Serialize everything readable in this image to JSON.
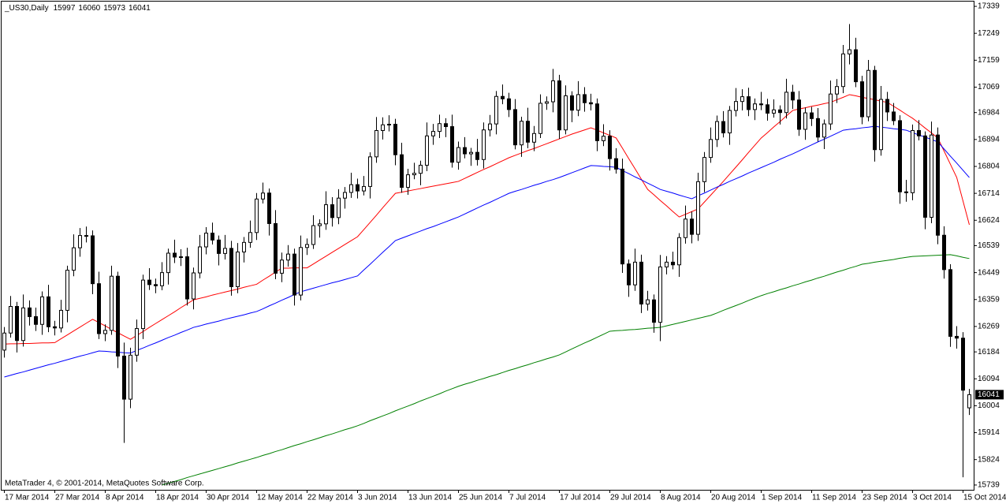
{
  "chart_data": {
    "type": "candlestick",
    "title": "_US30,Daily",
    "copyright": "MetaTrader 4, © 2001-2014, MetaQuotes Software Corp.",
    "categories": [
      "17 Mar 2014",
      null,
      null,
      null,
      null,
      null,
      null,
      null,
      "27 Mar 2014",
      null,
      null,
      null,
      null,
      null,
      null,
      null,
      "8 Apr 2014",
      null,
      null,
      null,
      null,
      null,
      null,
      null,
      "18 Apr 2014",
      null,
      null,
      null,
      null,
      null,
      null,
      null,
      "30 Apr 2014",
      null,
      null,
      null,
      null,
      null,
      null,
      null,
      "12 May 2014",
      null,
      null,
      null,
      null,
      null,
      null,
      null,
      "22 May 2014",
      null,
      null,
      null,
      null,
      null,
      null,
      null,
      "3 Jun 2014",
      null,
      null,
      null,
      null,
      null,
      null,
      null,
      "13 Jun 2014",
      null,
      null,
      null,
      null,
      null,
      null,
      null,
      "25 Jun 2014",
      null,
      null,
      null,
      null,
      null,
      null,
      null,
      "7 Jul 2014",
      null,
      null,
      null,
      null,
      null,
      null,
      null,
      "17 Jul 2014",
      null,
      null,
      null,
      null,
      null,
      null,
      null,
      "29 Jul 2014",
      null,
      null,
      null,
      null,
      null,
      null,
      null,
      "8 Aug 2014",
      null,
      null,
      null,
      null,
      null,
      null,
      null,
      "20 Aug 2014",
      null,
      null,
      null,
      null,
      null,
      null,
      null,
      "1 Sep 2014",
      null,
      null,
      null,
      null,
      null,
      null,
      null,
      "11 Sep 2014",
      null,
      null,
      null,
      null,
      null,
      null,
      null,
      "23 Sep 2014",
      null,
      null,
      null,
      null,
      null,
      null,
      null,
      "3 Oct 2014",
      null,
      null,
      null,
      null,
      null,
      null,
      null,
      "15 Oct 2014",
      null
    ],
    "open": [
      16190,
      16247,
      16336,
      16222,
      16331,
      16302,
      16276,
      16368,
      16268,
      16264,
      16323,
      16457,
      16532,
      16573,
      16572,
      16412,
      16245,
      16256,
      16437,
      16170,
      16026,
      16173,
      16262,
      16424,
      16409,
      16405,
      16449,
      16514,
      16501,
      16502,
      16361,
      16448,
      16535,
      16581,
      16558,
      16513,
      16530,
      16402,
      16518,
      16550,
      16583,
      16695,
      16715,
      16613,
      16447,
      16491,
      16511,
      16374,
      16533,
      16543,
      16606,
      16612,
      16676,
      16633,
      16698,
      16717,
      16743,
      16722,
      16737,
      16836,
      16924,
      16943,
      16945,
      16843,
      16734,
      16776,
      16781,
      16808,
      16906,
      16921,
      16947,
      16937,
      16818,
      16867,
      16846,
      16851,
      16827,
      16926,
      16946,
      17038,
      17030,
      16994,
      16876,
      16955,
      16885,
      16914,
      17015,
      17020,
      17090,
      16926,
      17040,
      16992,
      17044,
      17017,
      17013,
      16890,
      16905,
      16830,
      16795,
      16478,
      16408,
      16484,
      16344,
      16358,
      16283,
      16468,
      16484,
      16475,
      16566,
      16628,
      16577,
      16753,
      16834,
      16894,
      16954,
      16916,
      16991,
      17021,
      17037,
      16994,
      17013,
      17010,
      16982,
      16993,
      16984,
      17052,
      17026,
      16928,
      16983,
      16964,
      16902,
      16946,
      17046,
      17071,
      17180,
      17194,
      17087,
      16970,
      17125,
      16860,
      17028,
      16986,
      16957,
      16719,
      16716,
      16924,
      16906,
      16634,
      16909,
      16574,
      16459,
      16236,
      16230,
      15997
    ],
    "high": [
      16267,
      16371,
      16351,
      16376,
      16356,
      16332,
      16386,
      16408,
      16288,
      16358,
      16472,
      16577,
      16598,
      16603,
      16590,
      16452,
      16276,
      16472,
      16452,
      16215,
      16198,
      16292,
      16442,
      16464,
      16429,
      16484,
      16529,
      16559,
      16527,
      16532,
      16466,
      16575,
      16601,
      16616,
      16573,
      16575,
      16555,
      16548,
      16568,
      16623,
      16715,
      16750,
      16730,
      16658,
      16516,
      16541,
      16529,
      16573,
      16563,
      16641,
      16627,
      16721,
      16701,
      16728,
      16735,
      16783,
      16763,
      16772,
      16851,
      16969,
      16968,
      16975,
      16963,
      16883,
      16796,
      16816,
      16823,
      16951,
      16946,
      16977,
      16965,
      16977,
      16887,
      16902,
      16866,
      16896,
      16951,
      16976,
      17056,
      17078,
      17050,
      17029,
      16970,
      17000,
      16939,
      17045,
      17038,
      17130,
      17110,
      17075,
      17055,
      17089,
      17069,
      17047,
      17031,
      16945,
      16925,
      16865,
      16830,
      16493,
      16529,
      16509,
      16388,
      16376,
      16508,
      16504,
      16519,
      16581,
      16673,
      16653,
      16783,
      16852,
      16934,
      16974,
      16989,
      17006,
      17066,
      17062,
      17067,
      17031,
      17053,
      17030,
      17028,
      17008,
      17097,
      17077,
      17056,
      17001,
      17003,
      16999,
      16961,
      17091,
      17096,
      17210,
      17280,
      17234,
      17107,
      17160,
      17140,
      17073,
      17053,
      17016,
      16975,
      16759,
      16944,
      16959,
      16921,
      16954,
      16934,
      16604,
      16477,
      16270,
      16250,
      16060
    ],
    "low": [
      16165,
      16232,
      16182,
      16202,
      16272,
      16254,
      16241,
      16250,
      16239,
      16249,
      16283,
      16437,
      16502,
      16550,
      16377,
      16227,
      16220,
      16241,
      16130,
      15880,
      15996,
      16151,
      16227,
      16391,
      16380,
      16390,
      16409,
      16481,
      16471,
      16339,
      16326,
      16430,
      16510,
      16543,
      16473,
      16493,
      16372,
      16380,
      16483,
      16532,
      16558,
      16680,
      16573,
      16427,
      16417,
      16469,
      16339,
      16356,
      16508,
      16528,
      16566,
      16592,
      16603,
      16611,
      16663,
      16699,
      16697,
      16707,
      16697,
      16816,
      16894,
      16921,
      16808,
      16716,
      16709,
      16761,
      16741,
      16788,
      16876,
      16899,
      16902,
      16800,
      16793,
      16831,
      16806,
      16807,
      16797,
      16904,
      16911,
      17012,
      16969,
      16861,
      16836,
      16865,
      16855,
      16899,
      16993,
      16985,
      16896,
      16911,
      16952,
      16972,
      16987,
      16991,
      16855,
      16872,
      16790,
      16780,
      16448,
      16368,
      16388,
      16314,
      16322,
      16248,
      16220,
      16443,
      16460,
      16435,
      16546,
      16547,
      16555,
      16718,
      16816,
      16869,
      16901,
      16876,
      16971,
      16991,
      16972,
      16959,
      16992,
      16957,
      16967,
      16944,
      16964,
      16996,
      16906,
      16893,
      16939,
      16887,
      16862,
      16926,
      17016,
      17049,
      17145,
      17069,
      16945,
      16955,
      16820,
      16840,
      16956,
      16942,
      16679,
      16686,
      16691,
      16891,
      16594,
      16614,
      16544,
      16429,
      16201,
      16195,
      15765,
      15973
    ],
    "close": [
      16247,
      16336,
      16222,
      16331,
      16302,
      16276,
      16368,
      16268,
      16264,
      16323,
      16457,
      16532,
      16573,
      16572,
      16412,
      16245,
      16256,
      16437,
      16170,
      16026,
      16173,
      16262,
      16424,
      16409,
      16405,
      16449,
      16514,
      16501,
      16502,
      16361,
      16448,
      16535,
      16581,
      16558,
      16513,
      16530,
      16402,
      16518,
      16550,
      16583,
      16695,
      16715,
      16613,
      16447,
      16491,
      16511,
      16374,
      16533,
      16543,
      16606,
      16612,
      16676,
      16633,
      16698,
      16717,
      16743,
      16722,
      16737,
      16836,
      16924,
      16943,
      16945,
      16843,
      16734,
      16776,
      16781,
      16808,
      16906,
      16921,
      16947,
      16937,
      16818,
      16867,
      16846,
      16851,
      16827,
      16926,
      16946,
      17038,
      17030,
      16994,
      16876,
      16955,
      16885,
      16914,
      17015,
      17020,
      17090,
      16926,
      17040,
      16992,
      17044,
      17017,
      17013,
      16890,
      16905,
      16830,
      16795,
      16478,
      16408,
      16484,
      16344,
      16358,
      16283,
      16468,
      16484,
      16475,
      16566,
      16628,
      16577,
      16753,
      16834,
      16894,
      16954,
      16916,
      16991,
      17021,
      17037,
      16994,
      17013,
      17010,
      16982,
      16993,
      16984,
      17052,
      17026,
      16928,
      16983,
      16964,
      16902,
      16946,
      17046,
      17071,
      17180,
      17194,
      17087,
      16970,
      17125,
      16860,
      17028,
      16986,
      16957,
      16719,
      16716,
      16924,
      16906,
      16634,
      16909,
      16574,
      16459,
      16236,
      16230,
      16056,
      16041
    ],
    "up_color": "#ffffff",
    "down_color": "#000000",
    "outline_color": "#000000",
    "series": [
      {
        "color": "#ff0000",
        "values": [
          16210,
          16211,
          16211,
          16212,
          16212,
          16213,
          16214,
          16214,
          16215,
          16228,
          16241,
          16254,
          16267,
          16280,
          16293,
          16282,
          16271,
          16259,
          16248,
          16237,
          16226,
          16239,
          16252,
          16266,
          16279,
          16292,
          16305,
          16318,
          16332,
          16345,
          16358,
          16363,
          16368,
          16374,
          16379,
          16384,
          16389,
          16394,
          16400,
          16405,
          16410,
          16424,
          16437,
          16451,
          16464,
          16464,
          16465,
          16465,
          16465,
          16478,
          16491,
          16504,
          16517,
          16530,
          16543,
          16556,
          16569,
          16593,
          16617,
          16641,
          16666,
          16690,
          16714,
          16718,
          16722,
          16726,
          16730,
          16734,
          16738,
          16742,
          16746,
          16750,
          16754,
          16764,
          16774,
          16784,
          16794,
          16803,
          16813,
          16823,
          16833,
          16841,
          16849,
          16857,
          16864,
          16872,
          16880,
          16888,
          16896,
          16904,
          16912,
          16919,
          16926,
          16933,
          16925,
          16916,
          16908,
          16899,
          16865,
          16830,
          16796,
          16761,
          16727,
          16709,
          16690,
          16672,
          16653,
          16635,
          16644,
          16653,
          16662,
          16685,
          16708,
          16731,
          16754,
          16778,
          16802,
          16826,
          16851,
          16875,
          16899,
          16917,
          16936,
          16954,
          16973,
          16991,
          16996,
          17000,
          17005,
          17009,
          17014,
          17018,
          17027,
          17035,
          17044,
          17040,
          17035,
          17031,
          17027,
          17022,
          17018,
          17005,
          16992,
          16978,
          16965,
          16949,
          16932,
          16916,
          16899,
          16855,
          16811,
          16767,
          16688,
          16609
        ]
      },
      {
        "color": "#0000ff",
        "values": [
          16100,
          16106,
          16112,
          16117,
          16123,
          16129,
          16135,
          16141,
          16146,
          16152,
          16158,
          16164,
          16170,
          16175,
          16181,
          16187,
          16186,
          16184,
          16183,
          16181,
          16180,
          16189,
          16197,
          16206,
          16214,
          16223,
          16232,
          16240,
          16249,
          16257,
          16266,
          16271,
          16277,
          16282,
          16287,
          16293,
          16298,
          16303,
          16308,
          16314,
          16319,
          16328,
          16338,
          16347,
          16357,
          16366,
          16376,
          16385,
          16391,
          16397,
          16403,
          16409,
          16415,
          16420,
          16426,
          16432,
          16438,
          16458,
          16477,
          16497,
          16517,
          16536,
          16556,
          16564,
          16572,
          16580,
          16588,
          16596,
          16603,
          16611,
          16619,
          16627,
          16635,
          16645,
          16655,
          16665,
          16675,
          16684,
          16694,
          16704,
          16714,
          16721,
          16727,
          16734,
          16741,
          16747,
          16754,
          16760,
          16767,
          16775,
          16783,
          16791,
          16799,
          16807,
          16806,
          16804,
          16803,
          16801,
          16790,
          16780,
          16769,
          16759,
          16748,
          16738,
          16727,
          16721,
          16715,
          16708,
          16702,
          16696,
          16706,
          16715,
          16725,
          16735,
          16744,
          16754,
          16763,
          16772,
          16782,
          16791,
          16800,
          16809,
          16818,
          16828,
          16837,
          16846,
          16856,
          16866,
          16876,
          16886,
          16895,
          16905,
          16915,
          16925,
          16928,
          16930,
          16933,
          16935,
          16938,
          16935,
          16933,
          16930,
          16928,
          16925,
          16917,
          16909,
          16902,
          16894,
          16886,
          16862,
          16838,
          16815,
          16791,
          16767
        ]
      },
      {
        "color": "#008000",
        "values": [
          null,
          null,
          null,
          null,
          null,
          null,
          null,
          null,
          null,
          null,
          null,
          null,
          null,
          null,
          null,
          null,
          null,
          null,
          null,
          null,
          null,
          null,
          null,
          null,
          null,
          15739,
          15745,
          15751,
          15757,
          15764,
          15770,
          15776,
          15782,
          15788,
          15794,
          15800,
          15806,
          15813,
          15819,
          15825,
          15831,
          15838,
          15844,
          15851,
          15857,
          15864,
          15871,
          15877,
          15884,
          15890,
          15897,
          15904,
          15910,
          15917,
          15924,
          15930,
          15937,
          15945,
          15954,
          15962,
          15970,
          15978,
          15987,
          15995,
          16003,
          16011,
          16020,
          16028,
          16036,
          16044,
          16053,
          16061,
          16069,
          16076,
          16082,
          16089,
          16095,
          16102,
          16108,
          16115,
          16122,
          16128,
          16135,
          16141,
          16148,
          16154,
          16161,
          16167,
          16174,
          16184,
          16194,
          16204,
          16214,
          16223,
          16233,
          16243,
          16253,
          16255,
          16256,
          16258,
          16259,
          16261,
          16263,
          16264,
          16266,
          16271,
          16276,
          16281,
          16286,
          16291,
          16296,
          16301,
          16306,
          16314,
          16323,
          16331,
          16339,
          16347,
          16356,
          16364,
          16372,
          16379,
          16385,
          16392,
          16398,
          16405,
          16411,
          16418,
          16424,
          16431,
          16437,
          16444,
          16451,
          16457,
          16464,
          16470,
          16477,
          16480,
          16484,
          16487,
          16490,
          16493,
          16497,
          16500,
          16503,
          16504,
          16505,
          16506,
          16507,
          16508,
          16509,
          16505,
          16500,
          16496
        ]
      }
    ],
    "ylim": [
      15723,
      17355
    ],
    "yticks": [
      17339,
      17249,
      17159,
      17069,
      16984,
      16894,
      16804,
      16714,
      16624,
      16539,
      16449,
      16359,
      16269,
      16184,
      16094,
      16004,
      15914,
      15824,
      15739
    ],
    "grid": false
  }
}
